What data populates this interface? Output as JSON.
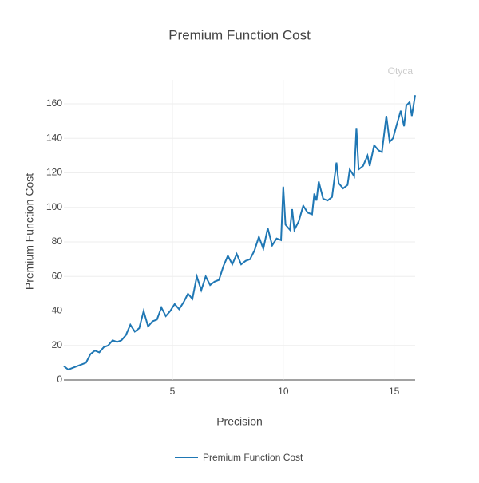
{
  "chart_data": {
    "type": "line",
    "title": "Premium Function Cost",
    "watermark": "Otyca",
    "x_label": "Precision",
    "y_label": "Premium Function Cost",
    "x": [
      0.1,
      0.3,
      0.5,
      0.7,
      0.9,
      1.1,
      1.3,
      1.5,
      1.7,
      1.9,
      2.1,
      2.3,
      2.5,
      2.7,
      2.9,
      3.1,
      3.3,
      3.5,
      3.7,
      3.9,
      4.1,
      4.3,
      4.5,
      4.7,
      4.9,
      5.1,
      5.3,
      5.5,
      5.7,
      5.9,
      6.1,
      6.3,
      6.5,
      6.7,
      6.9,
      7.1,
      7.3,
      7.5,
      7.7,
      7.9,
      8.1,
      8.3,
      8.5,
      8.7,
      8.9,
      9.1,
      9.3,
      9.5,
      9.7,
      9.9,
      10.0,
      10.1,
      10.3,
      10.4,
      10.5,
      10.7,
      10.9,
      11.1,
      11.3,
      11.4,
      11.5,
      11.6,
      11.8,
      12.0,
      12.2,
      12.4,
      12.5,
      12.7,
      12.9,
      13.0,
      13.2,
      13.3,
      13.4,
      13.6,
      13.8,
      13.9,
      14.1,
      14.3,
      14.45,
      14.65,
      14.8,
      14.95,
      15.1,
      15.3,
      15.45,
      15.55,
      15.7,
      15.8,
      15.95
    ],
    "series": [
      {
        "name": "Premium Function Cost",
        "color": "#1f77b4",
        "values": [
          8,
          6,
          7,
          8,
          9,
          10,
          15,
          17,
          16,
          19,
          20,
          23,
          22,
          23,
          26,
          32,
          28,
          30,
          40,
          31,
          34,
          35,
          42,
          37,
          40,
          44,
          41,
          45,
          50,
          47,
          60,
          52,
          60,
          55,
          57,
          58,
          66,
          72,
          67,
          73,
          67,
          69,
          70,
          75,
          83,
          76,
          88,
          78,
          82,
          81,
          112,
          90,
          87,
          99,
          87,
          92,
          101,
          97,
          96,
          108,
          104,
          115,
          105,
          104,
          106,
          126,
          114,
          111,
          113,
          122,
          118,
          146,
          122,
          124,
          130,
          124,
          136,
          133,
          132,
          153,
          138,
          140,
          147,
          156,
          147,
          159,
          161,
          153,
          165
        ]
      }
    ],
    "xlim": [
      0.1,
      15.95
    ],
    "ylim": [
      0,
      173.9
    ],
    "xticks": [
      5,
      10,
      15
    ],
    "yticks": [
      0,
      20,
      40,
      60,
      80,
      100,
      120,
      140,
      160
    ],
    "grid": true
  }
}
